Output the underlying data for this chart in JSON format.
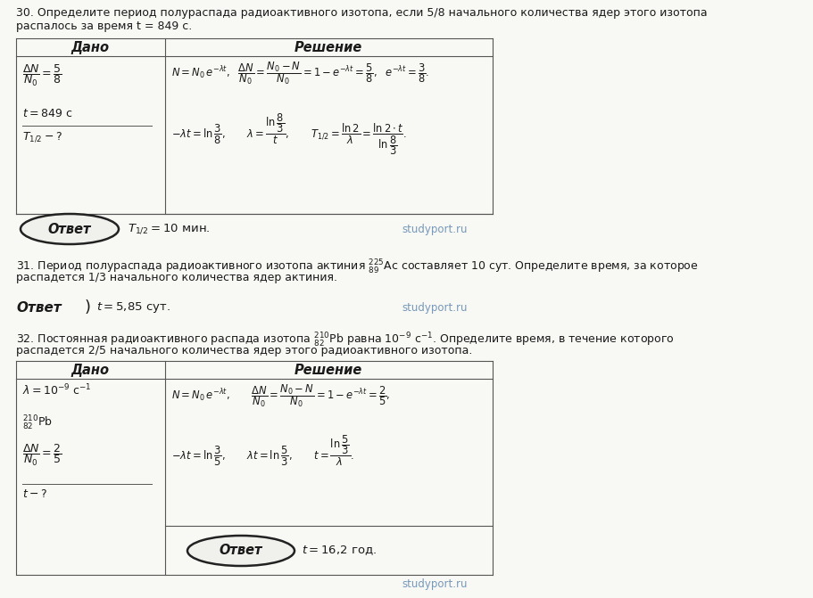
{
  "bg_color": "#f5f5f0",
  "text_color": "#1a1a1a",
  "studyport_color": "#7799bb",
  "line_color": "#555555",
  "page_width": 9.12,
  "page_height": 6.71,
  "dpi": 100,
  "p30_text1": "30. Определите период полураспада радиоактивного изотопа, если 5/8 начального количества ядер этого изотопа",
  "p30_text2": "распалось за время t = 849 с.",
  "p31_text1": "31. Период полураспада радиоактивного изотопа актиния ${}^{225}_{89}$Ас составляет 10 сут. Определите время, за которое",
  "p31_text2": "распадется 1/3 начального количества ядер актиния.",
  "p32_text1": "32. Постоянная радиоактивного распада изотопа ${}^{210}_{82}$Pb равна 10$^{-9}$ с$^{-1}$. Определите время, в течение которого",
  "p32_text2": "распадется 2/5 начального количества ядер этого радиоактивного изотопа.",
  "dado": "Дано",
  "reshenie": "Решение",
  "otvet": "Ответ",
  "studyport": "studyport.ru"
}
